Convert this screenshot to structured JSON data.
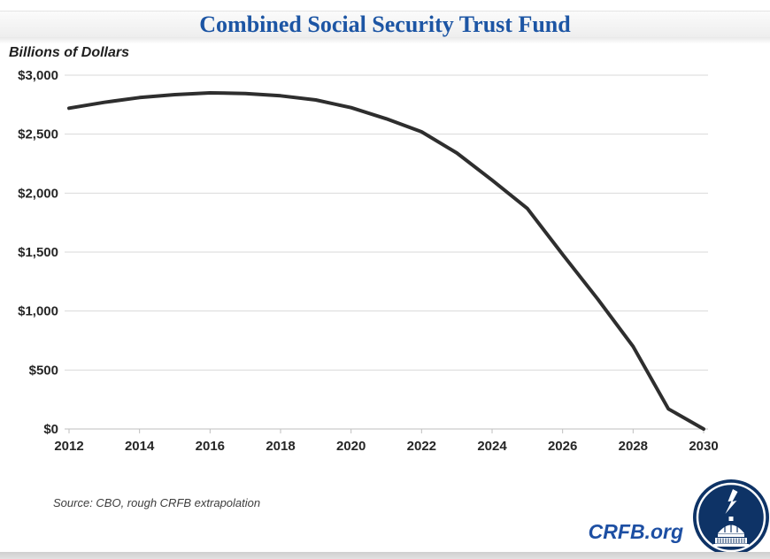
{
  "header": {
    "title": "Combined Social Security Trust Fund"
  },
  "footer": {
    "source": "Source: CBO, rough CRFB extrapolation",
    "site": "CRFB.org"
  },
  "colors": {
    "title_blue": "#1c55a4",
    "crfb_blue": "#1d4fa3",
    "logo_navy": "#0e3366",
    "line": "#2e2e2e",
    "gridline": "#d9d9d9",
    "axis": "#bfbfbf"
  },
  "chart_data": {
    "type": "line",
    "title": "Combined Social Security Trust Fund",
    "ylabel": "Billions of Dollars",
    "xlabel": "",
    "legend": "none",
    "grid": "horizontal",
    "xlim": [
      2012,
      2030
    ],
    "ylim": [
      0,
      3000
    ],
    "line_color": "#2e2e2e",
    "gridline_color": "#d9d9d9",
    "axis_color": "#bfbfbf",
    "series": [
      {
        "name": "Combined Social Security Trust Fund balance",
        "x": [
          2012,
          2013,
          2014,
          2015,
          2016,
          2017,
          2018,
          2019,
          2020,
          2021,
          2022,
          2023,
          2024,
          2025,
          2026,
          2027,
          2028,
          2029,
          2030
        ],
        "values": [
          2720,
          2770,
          2810,
          2835,
          2850,
          2845,
          2825,
          2790,
          2725,
          2630,
          2520,
          2340,
          2110,
          1870,
          1480,
          1100,
          700,
          170,
          0
        ]
      }
    ],
    "y_ticks": [
      {
        "value": 0,
        "label": "$0"
      },
      {
        "value": 500,
        "label": "$500"
      },
      {
        "value": 1000,
        "label": "$1,000"
      },
      {
        "value": 1500,
        "label": "$1,500"
      },
      {
        "value": 2000,
        "label": "$2,000"
      },
      {
        "value": 2500,
        "label": "$2,500"
      },
      {
        "value": 3000,
        "label": "$3,000"
      }
    ],
    "x_ticks": [
      {
        "value": 2012,
        "label": "2012"
      },
      {
        "value": 2014,
        "label": "2014"
      },
      {
        "value": 2016,
        "label": "2016"
      },
      {
        "value": 2018,
        "label": "2018"
      },
      {
        "value": 2020,
        "label": "2020"
      },
      {
        "value": 2022,
        "label": "2022"
      },
      {
        "value": 2024,
        "label": "2024"
      },
      {
        "value": 2026,
        "label": "2026"
      },
      {
        "value": 2028,
        "label": "2028"
      },
      {
        "value": 2030,
        "label": "2030"
      }
    ],
    "annotation": "Source: CBO, rough CRFB extrapolation"
  }
}
